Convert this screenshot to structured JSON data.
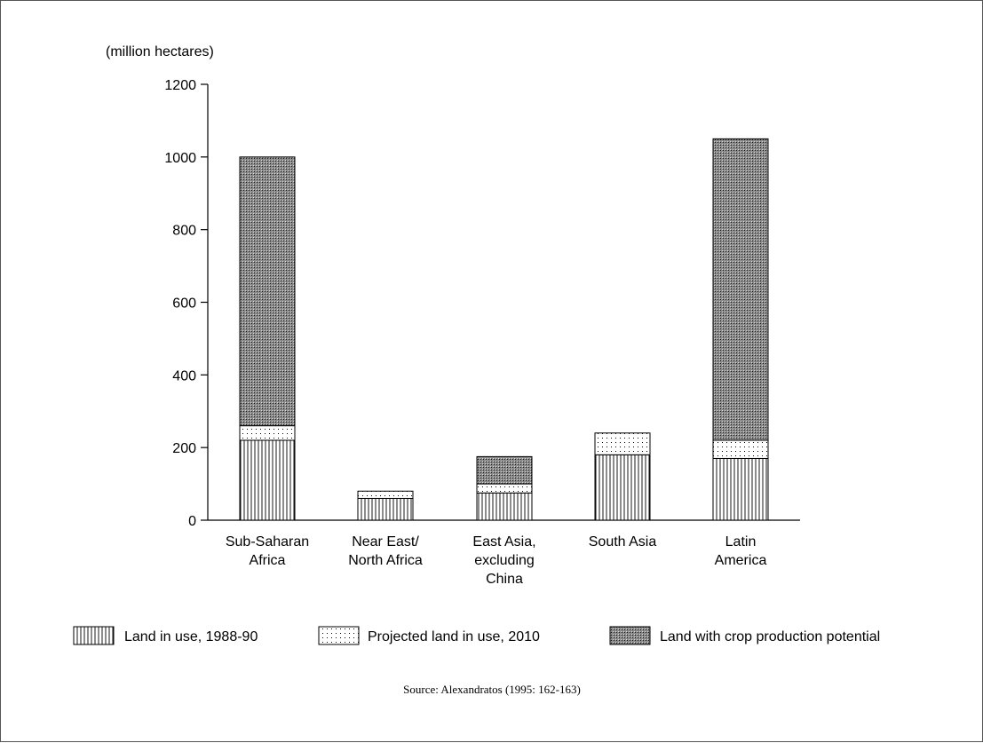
{
  "chart_data": {
    "type": "bar",
    "stacked": true,
    "unit_label": "(million hectares)",
    "ylim": [
      0,
      1200
    ],
    "yticks": [
      0,
      200,
      400,
      600,
      800,
      1000,
      1200
    ],
    "categories": [
      [
        "Sub-Saharan",
        "Africa"
      ],
      [
        "Near East/",
        "North Africa"
      ],
      [
        "East Asia,",
        "excluding",
        "China"
      ],
      [
        "South Asia"
      ],
      [
        "Latin",
        "America"
      ]
    ],
    "series": [
      {
        "name": "Land in use, 1988-90",
        "pattern": "vertical-lines",
        "values": [
          220,
          60,
          75,
          180,
          170
        ]
      },
      {
        "name": "Projected land in use, 2010",
        "pattern": "dots",
        "values": [
          40,
          20,
          25,
          60,
          50
        ]
      },
      {
        "name": "Land with crop production potential",
        "pattern": "crosshatch",
        "values": [
          740,
          0,
          75,
          0,
          830
        ]
      }
    ],
    "legend_position": "bottom",
    "grid": false,
    "source": "Source: Alexandratos (1995: 162-163)"
  }
}
